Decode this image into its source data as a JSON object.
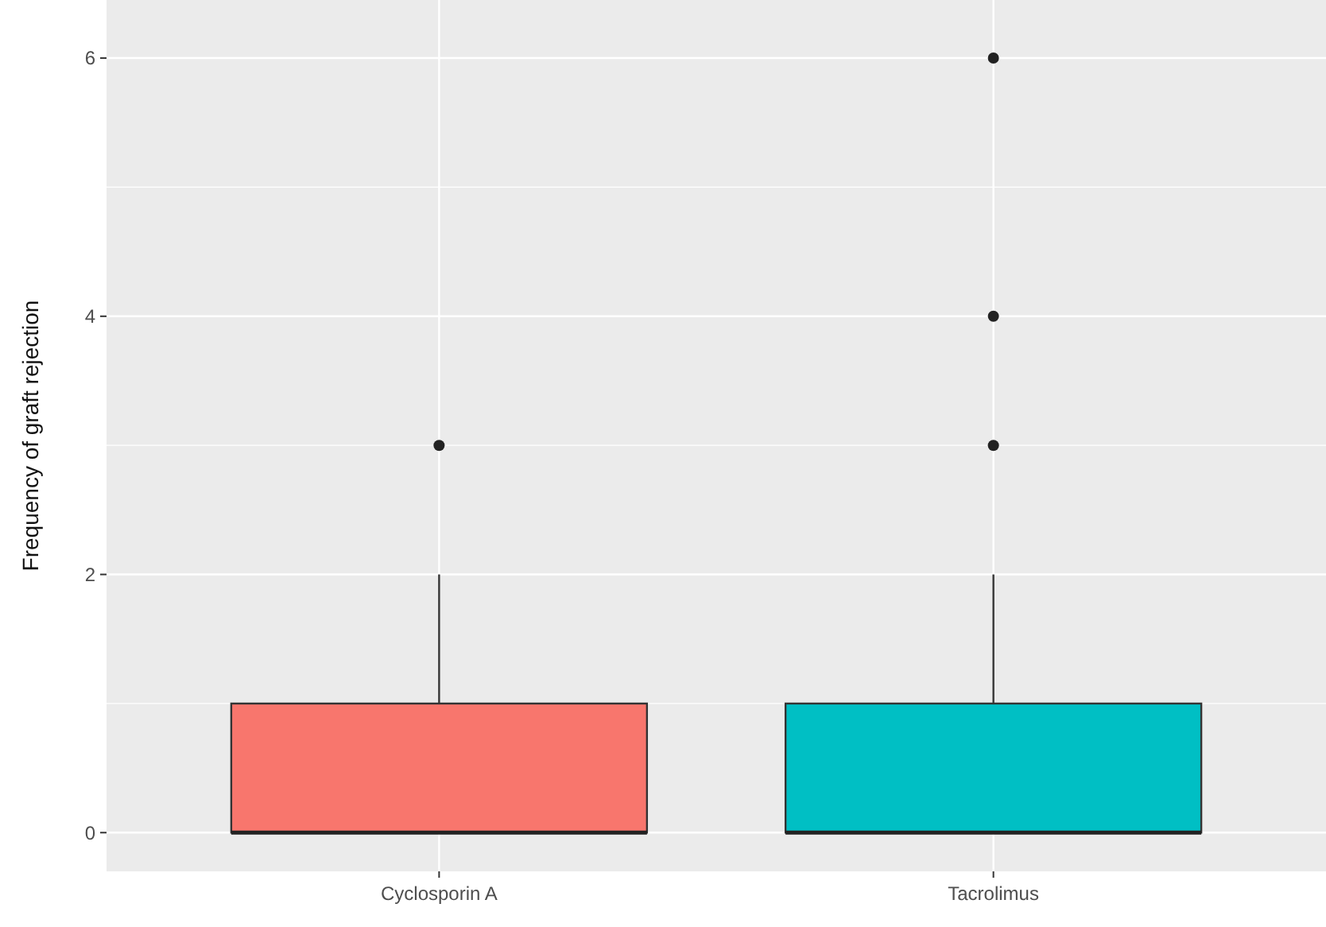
{
  "chart_data": {
    "type": "box",
    "ylabel": "Frequency of graft rejection",
    "categories": [
      "Cyclosporin A",
      "Tacrolimus"
    ],
    "boxes": [
      {
        "low": 0,
        "q1": 0,
        "median": 0,
        "q3": 1,
        "high": 2,
        "outliers": [
          3
        ]
      },
      {
        "low": 0,
        "q1": 0,
        "median": 0,
        "q3": 1,
        "high": 2,
        "outliers": [
          3,
          4,
          6
        ]
      }
    ],
    "colors": [
      "#f8766d",
      "#00bfc4"
    ],
    "ylim": [
      -0.3,
      6.45
    ],
    "yticks": [
      0,
      2,
      4,
      6
    ],
    "grid": true
  }
}
